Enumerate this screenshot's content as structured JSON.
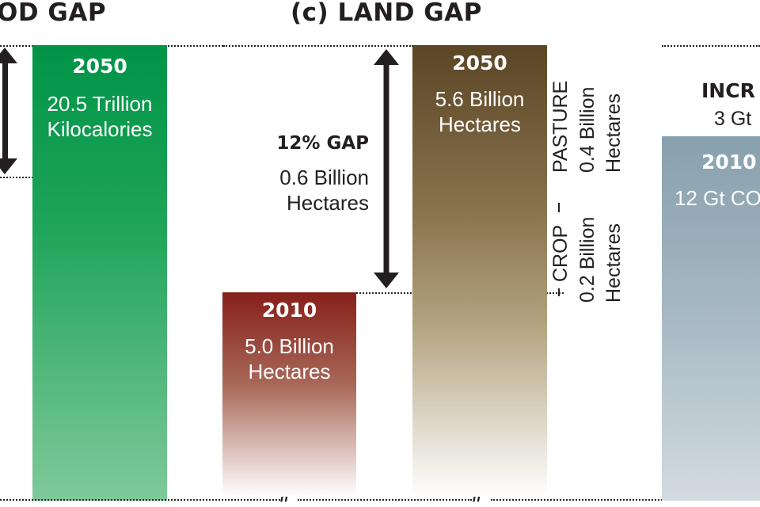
{
  "chart_data": [
    {
      "type": "bar",
      "title": "OD GAP",
      "series": [
        {
          "name": "2050",
          "label": "20.5 Trillion Kilocalories",
          "line1": "20.5 Trillion",
          "line2": "Kilocalories",
          "value": 20.5,
          "unit": "Trillion Kilocalories"
        }
      ],
      "colors": {
        "top": "#009447",
        "bottom": "#7fc99a"
      }
    },
    {
      "type": "bar",
      "title": "(c) LAND GAP",
      "categories": [
        "2010",
        "2050"
      ],
      "values": [
        5.0,
        5.6
      ],
      "unit": "Billion Hectares",
      "labels": [
        {
          "year": "2010",
          "line1": "5.0 Billion",
          "line2": "Hectares"
        },
        {
          "year": "2050",
          "line1": "5.6 Billion",
          "line2": "Hectares"
        }
      ],
      "gap": {
        "title": "12% GAP",
        "line1": "0.6 Billion",
        "line2": "Hectares",
        "value": 0.6
      },
      "breakdown": [
        {
          "name": "PASTURE",
          "line1": "0.4 Billion",
          "line2": "Hectares",
          "value": 0.4
        },
        {
          "name": "CROP",
          "line1": "0.2 Billion",
          "line2": "Hectares",
          "value": 0.2
        }
      ],
      "axis_break": "//",
      "colors": {
        "bar2010_top": "#861f1a",
        "bar2010_bottom": "#ffffff",
        "bar2050_top": "#5a4525",
        "bar2050_bottom": "#ffffff"
      }
    },
    {
      "type": "bar",
      "title_fragment": "INCR",
      "increase_fragment": "3 Gt",
      "series": [
        {
          "name": "2010",
          "value_fragment": "12 Gt CO",
          "value": 12
        }
      ],
      "colors": {
        "top": "#88a0ae",
        "bottom": "#d2dbe0"
      }
    }
  ]
}
